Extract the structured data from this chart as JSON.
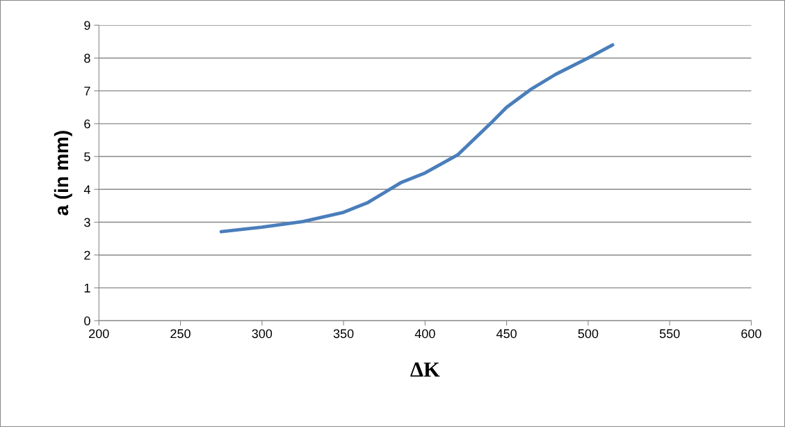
{
  "chart_data": {
    "type": "line",
    "xlabel": "ΔK",
    "ylabel": "a (in mm)",
    "x": [
      275,
      300,
      325,
      350,
      365,
      375,
      385,
      400,
      420,
      440,
      450,
      465,
      480,
      500,
      515
    ],
    "series": [
      {
        "color": "#4a7ebb",
        "values": [
          2.71,
          2.85,
          3.02,
          3.3,
          3.6,
          3.9,
          4.2,
          4.5,
          5.05,
          6.0,
          6.5,
          7.05,
          7.5,
          8.0,
          8.4
        ]
      }
    ],
    "xlim": [
      200,
      600
    ],
    "xticks": [
      200,
      250,
      300,
      350,
      400,
      450,
      500,
      550,
      600
    ],
    "ylim": [
      0,
      9
    ],
    "yticks": [
      0,
      1,
      2,
      3,
      4,
      5,
      6,
      7,
      8,
      9
    ],
    "grid": "y",
    "marker": "none",
    "line_style": "solid",
    "legend": false
  }
}
